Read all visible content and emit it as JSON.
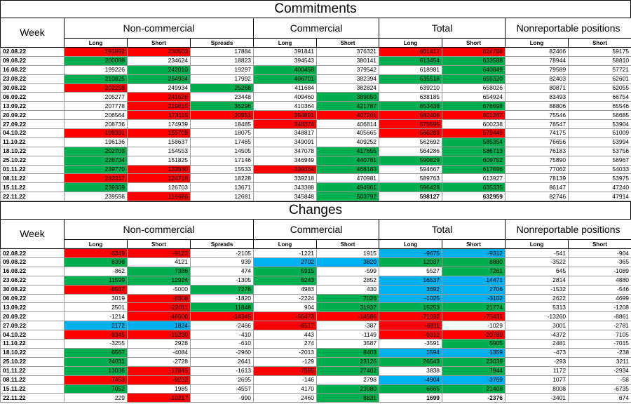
{
  "commitments": {
    "title": "Commitments",
    "header": {
      "week": "Week",
      "groups": [
        "Non-commercial",
        "Commercial",
        "Total",
        "Nonreportable positions"
      ],
      "sub": [
        "Long",
        "Short",
        "Spreads",
        "Long",
        "Short",
        "Long",
        "Short",
        "Long",
        "Short"
      ]
    },
    "rows": [
      {
        "week": "02.08.22",
        "v": [
          "191692",
          "230503",
          "17884",
          "391841",
          "376321",
          "601417",
          "624708",
          "82466",
          "59175"
        ],
        "c": [
          "r",
          "r",
          "n",
          "n",
          "n",
          "r",
          "r",
          "n",
          "n"
        ]
      },
      {
        "week": "09.08.22",
        "v": [
          "200088",
          "234624",
          "18823",
          "394543",
          "380141",
          "613454",
          "633588",
          "78944",
          "58810"
        ],
        "c": [
          "g",
          "n",
          "n",
          "n",
          "n",
          "g",
          "g",
          "n",
          "n"
        ]
      },
      {
        "week": "16.08.22",
        "v": [
          "199226",
          "242010",
          "19297",
          "400458",
          "379542",
          "618981",
          "640849",
          "79589",
          "57721"
        ],
        "c": [
          "n",
          "g",
          "n",
          "g",
          "n",
          "n",
          "g",
          "n",
          "n"
        ]
      },
      {
        "week": "23.08.22",
        "v": [
          "210825",
          "254934",
          "17992",
          "406701",
          "382394",
          "635518",
          "655320",
          "82403",
          "62601"
        ],
        "c": [
          "g",
          "g",
          "n",
          "g",
          "n",
          "g",
          "g",
          "n",
          "n"
        ]
      },
      {
        "week": "30.08.22",
        "v": [
          "202258",
          "249934",
          "25268",
          "411684",
          "382824",
          "639210",
          "658026",
          "80871",
          "62055"
        ],
        "c": [
          "r",
          "n",
          "g",
          "n",
          "n",
          "n",
          "n",
          "n",
          "n"
        ]
      },
      {
        "week": "06.09.22",
        "v": [
          "205277",
          "241626",
          "23448",
          "409460",
          "389850",
          "638185",
          "654924",
          "83493",
          "66754"
        ],
        "c": [
          "n",
          "r",
          "n",
          "n",
          "g",
          "n",
          "n",
          "n",
          "n"
        ]
      },
      {
        "week": "13.09.22",
        "v": [
          "207778",
          "219615",
          "35296",
          "410364",
          "421787",
          "653438",
          "676698",
          "88806",
          "65546"
        ],
        "c": [
          "n",
          "r",
          "g",
          "n",
          "g",
          "g",
          "g",
          "n",
          "n"
        ]
      },
      {
        "week": "20.09.22",
        "v": [
          "206564",
          "173115",
          "20951",
          "354891",
          "407201",
          "582406",
          "601267",
          "75546",
          "56685"
        ],
        "c": [
          "n",
          "r",
          "r",
          "r",
          "r",
          "r",
          "r",
          "n",
          "n"
        ]
      },
      {
        "week": "27.09.22",
        "v": [
          "208736",
          "174939",
          "18485",
          "348374",
          "406814",
          "575595",
          "600238",
          "78547",
          "53904"
        ],
        "c": [
          "n",
          "n",
          "n",
          "r",
          "n",
          "r",
          "n",
          "n",
          "n"
        ]
      },
      {
        "week": "04.10.22",
        "v": [
          "199391",
          "155709",
          "18075",
          "348817",
          "405665",
          "566283",
          "579449",
          "74175",
          "61009"
        ],
        "c": [
          "r",
          "r",
          "n",
          "n",
          "n",
          "r",
          "r",
          "n",
          "n"
        ]
      },
      {
        "week": "11.10.22",
        "v": [
          "196136",
          "158637",
          "17465",
          "349091",
          "409252",
          "562692",
          "585354",
          "76656",
          "53994"
        ],
        "c": [
          "n",
          "n",
          "n",
          "n",
          "n",
          "n",
          "g",
          "n",
          "n"
        ]
      },
      {
        "week": "18.10.22",
        "v": [
          "202703",
          "154553",
          "14505",
          "347078",
          "417655",
          "564286",
          "586713",
          "76183",
          "53756"
        ],
        "c": [
          "g",
          "n",
          "n",
          "n",
          "g",
          "n",
          "g",
          "n",
          "n"
        ]
      },
      {
        "week": "25.10.22",
        "v": [
          "226734",
          "151825",
          "17146",
          "346949",
          "440781",
          "590829",
          "609752",
          "75890",
          "56967"
        ],
        "c": [
          "g",
          "n",
          "n",
          "n",
          "g",
          "g",
          "g",
          "n",
          "n"
        ]
      },
      {
        "week": "01.11.22",
        "v": [
          "239770",
          "133980",
          "15533",
          "339364",
          "468183",
          "594667",
          "617696",
          "77062",
          "54033"
        ],
        "c": [
          "g",
          "r",
          "n",
          "r",
          "g",
          "n",
          "g",
          "n",
          "n"
        ]
      },
      {
        "week": "08.11.22",
        "v": [
          "232317",
          "124718",
          "18228",
          "339218",
          "470981",
          "589763",
          "613927",
          "78139",
          "53975"
        ],
        "c": [
          "r",
          "r",
          "n",
          "n",
          "n",
          "n",
          "n",
          "n",
          "n"
        ]
      },
      {
        "week": "15.11.22",
        "v": [
          "239369",
          "126703",
          "13671",
          "343388",
          "494961",
          "596428",
          "635335",
          "86147",
          "47240"
        ],
        "c": [
          "g",
          "n",
          "n",
          "n",
          "g",
          "g",
          "g",
          "n",
          "n"
        ]
      },
      {
        "week": "22.11.22",
        "v": [
          "239598",
          "116486",
          "12681",
          "345848",
          "503792",
          "598127",
          "632959",
          "82746",
          "47914"
        ],
        "c": [
          "n",
          "r",
          "n",
          "n",
          "g",
          "n",
          "n",
          "n",
          "n"
        ],
        "bold": [
          5,
          6
        ]
      }
    ]
  },
  "changes": {
    "title": "Changes",
    "header": {
      "week": "Week",
      "groups": [
        "Non-commercial",
        "Commercial",
        "Total",
        "Nonreportable positions"
      ],
      "sub": [
        "Long",
        "Short",
        "Spreads",
        "Long",
        "Short",
        "Long",
        "Short",
        "Long",
        "Short"
      ]
    },
    "rows": [
      {
        "week": "02.08.22",
        "v": [
          "-6349",
          "-9122",
          "-2105",
          "-1221",
          "1915",
          "-9675",
          "-9312",
          "-541",
          "-904"
        ],
        "c": [
          "r",
          "r",
          "n",
          "n",
          "n",
          "b",
          "b",
          "n",
          "n"
        ]
      },
      {
        "week": "09.08.22",
        "v": [
          "8396",
          "4121",
          "939",
          "2702",
          "3820",
          "12037",
          "8880",
          "-3522",
          "-365"
        ],
        "c": [
          "g",
          "n",
          "n",
          "b",
          "b",
          "g",
          "g",
          "n",
          "n"
        ]
      },
      {
        "week": "16.08.22",
        "v": [
          "-862",
          "7386",
          "474",
          "5915",
          "-599",
          "5527",
          "7261",
          "645",
          "-1089"
        ],
        "c": [
          "n",
          "g",
          "n",
          "g",
          "n",
          "n",
          "g",
          "n",
          "n"
        ]
      },
      {
        "week": "23.08.22",
        "v": [
          "11599",
          "12924",
          "-1305",
          "6243",
          "2852",
          "16537",
          "14471",
          "2814",
          "4880"
        ],
        "c": [
          "g",
          "g",
          "n",
          "g",
          "n",
          "b",
          "b",
          "n",
          "n"
        ]
      },
      {
        "week": "30.08.22",
        "v": [
          "-8567",
          "-5000",
          "7276",
          "4983",
          "430",
          "3692",
          "2706",
          "-1532",
          "-546"
        ],
        "c": [
          "r",
          "n",
          "g",
          "n",
          "n",
          "b",
          "b",
          "n",
          "n"
        ]
      },
      {
        "week": "06.09.22",
        "v": [
          "3019",
          "-8308",
          "-1820",
          "-2224",
          "7026",
          "-1025",
          "-3102",
          "2622",
          "4699"
        ],
        "c": [
          "n",
          "r",
          "n",
          "n",
          "g",
          "b",
          "b",
          "n",
          "n"
        ]
      },
      {
        "week": "13.09.22",
        "v": [
          "2501",
          "-22011",
          "11848",
          "904",
          "31937",
          "15253",
          "21774",
          "5313",
          "-1208"
        ],
        "c": [
          "n",
          "r",
          "g",
          "n",
          "g",
          "g",
          "g",
          "n",
          "n"
        ]
      },
      {
        "week": "20.09.22",
        "v": [
          "-1214",
          "-46500",
          "-14345",
          "-55473",
          "-14586",
          "-71032",
          "-75431",
          "-13260",
          "-8861"
        ],
        "c": [
          "n",
          "r",
          "r",
          "r",
          "r",
          "r",
          "r",
          "n",
          "n"
        ]
      },
      {
        "week": "27.09.22",
        "v": [
          "2172",
          "1824",
          "-2466",
          "-6517",
          "-387",
          "-6811",
          "-1029",
          "3001",
          "-2781"
        ],
        "c": [
          "b",
          "b",
          "n",
          "r",
          "n",
          "r",
          "n",
          "n",
          "n"
        ]
      },
      {
        "week": "04.10.22",
        "v": [
          "-9345",
          "-19230",
          "-410",
          "443",
          "-1149",
          "-9312",
          "-20789",
          "-4372",
          "7105"
        ],
        "c": [
          "r",
          "r",
          "n",
          "n",
          "n",
          "r",
          "r",
          "n",
          "n"
        ]
      },
      {
        "week": "11.10.22",
        "v": [
          "-3255",
          "2928",
          "-610",
          "274",
          "3587",
          "-3591",
          "5905",
          "2481",
          "-7015"
        ],
        "c": [
          "n",
          "n",
          "n",
          "n",
          "n",
          "n",
          "g",
          "n",
          "n"
        ]
      },
      {
        "week": "18.10.22",
        "v": [
          "6567",
          "-4084",
          "-2960",
          "-2013",
          "8403",
          "1594",
          "1359",
          "-473",
          "-238"
        ],
        "c": [
          "g",
          "n",
          "n",
          "n",
          "g",
          "b",
          "b",
          "n",
          "n"
        ]
      },
      {
        "week": "25.10.22",
        "v": [
          "24031",
          "-2728",
          "2641",
          "-129",
          "23126",
          "26543",
          "23039",
          "-293",
          "3211"
        ],
        "c": [
          "g",
          "n",
          "n",
          "n",
          "g",
          "g",
          "g",
          "n",
          "n"
        ]
      },
      {
        "week": "01.11.22",
        "v": [
          "13036",
          "-17845",
          "-1613",
          "-7585",
          "27402",
          "3838",
          "7944",
          "1172",
          "-2934"
        ],
        "c": [
          "g",
          "r",
          "n",
          "r",
          "g",
          "n",
          "g",
          "n",
          "n"
        ]
      },
      {
        "week": "08.11.22",
        "v": [
          "-7453",
          "-9262",
          "2695",
          "-146",
          "2798",
          "-4904",
          "-3769",
          "1077",
          "-58"
        ],
        "c": [
          "r",
          "r",
          "n",
          "n",
          "n",
          "b",
          "b",
          "n",
          "n"
        ]
      },
      {
        "week": "15.11.22",
        "v": [
          "7052",
          "1985",
          "-4557",
          "4170",
          "23980",
          "6665",
          "21408",
          "8008",
          "-6735"
        ],
        "c": [
          "g",
          "n",
          "n",
          "n",
          "g",
          "g",
          "g",
          "n",
          "n"
        ]
      },
      {
        "week": "22.11.22",
        "v": [
          "229",
          "-10217",
          "-990",
          "2460",
          "8831",
          "1699",
          "-2376",
          "-3401",
          "674"
        ],
        "c": [
          "n",
          "r",
          "n",
          "n",
          "g",
          "n",
          "n",
          "n",
          "n"
        ],
        "bold": [
          5,
          6
        ]
      }
    ]
  },
  "colors": {
    "red": "#ff0000",
    "green": "#00b050",
    "blue": "#00b0f0"
  }
}
